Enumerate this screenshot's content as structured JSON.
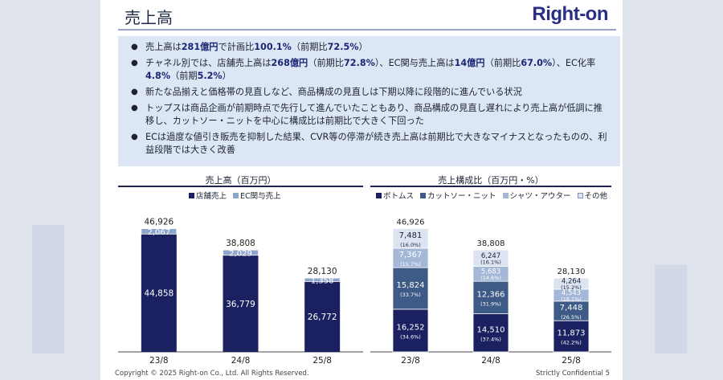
{
  "slide": {
    "title": "売上高",
    "logo": "Right-on",
    "bullets": [
      [
        {
          "t": "売上高は"
        },
        {
          "t": "281億円",
          "b": true
        },
        {
          "t": "で計画比"
        },
        {
          "t": "100.1%",
          "b": true
        },
        {
          "t": "（前期比"
        },
        {
          "t": "72.5%",
          "b": true
        },
        {
          "t": "）"
        }
      ],
      [
        {
          "t": "チャネル別では、店舗売上高は"
        },
        {
          "t": "268億円",
          "b": true
        },
        {
          "t": "（前期比"
        },
        {
          "t": "72.8%",
          "b": true
        },
        {
          "t": "）、EC関与売上高は"
        },
        {
          "t": "14億円",
          "b": true
        },
        {
          "t": "（前期比"
        },
        {
          "t": "67.0%",
          "b": true
        },
        {
          "t": "）、EC化率"
        },
        {
          "t": "4.8%",
          "b": true
        },
        {
          "t": "（前期"
        },
        {
          "t": "5.2%",
          "b": true
        },
        {
          "t": "）"
        }
      ],
      [
        {
          "t": "新たな品揃えと価格帯の見直しなど、商品構成の見直しは下期以降に段階的に進んでいる状況"
        }
      ],
      [
        {
          "t": "トップスは商品企画が前期時点で先行して進んでいたこともあり、商品構成の見直し遅れにより売上高が低調に推移し、カットソー・ニットを中心に構成比は前期比で大きく下回った"
        }
      ],
      [
        {
          "t": "ECは過度な値引き販売を抑制した結果、CVR等の停滞が続き売上高は前期比で大きなマイナスとなったものの、利益段階では大きく改善"
        }
      ]
    ],
    "footer_left": "Copyright © 2025 Right-on Co., Ltd.  All Rights Reserved.",
    "footer_right": "Strictly Confidential    5"
  },
  "colors": {
    "navy": "#1b2160",
    "steel": "#8fa6cc",
    "mid": "#3e5a86",
    "light": "#a3b7d6",
    "pale": "#dce4f1"
  },
  "chart_data": [
    {
      "type": "bar",
      "title": "売上高（百万円）",
      "categories": [
        "23/8",
        "24/8",
        "25/8"
      ],
      "series": [
        {
          "name": "店舗売上",
          "values": [
            44858,
            36779,
            26772
          ]
        },
        {
          "name": "EC関与売上",
          "values": [
            2067,
            2029,
            1358
          ]
        }
      ],
      "totals": [
        46926,
        38808,
        28130
      ],
      "labels": {
        "店舗売上": [
          "44,858",
          "36,779",
          "26,772"
        ],
        "EC関与売上": [
          "2,067",
          "2,029",
          "1,358"
        ],
        "totals": [
          "46,926",
          "38,808",
          "28,130"
        ]
      },
      "ylim": [
        0,
        52000
      ]
    },
    {
      "type": "bar",
      "title": "売上構成比（百万円・%）",
      "categories": [
        "23/8",
        "24/8",
        "25/8"
      ],
      "series": [
        {
          "name": "ボトムス",
          "values": [
            16252,
            14510,
            11873
          ],
          "labels": [
            "16,252",
            "14,510",
            "11,873"
          ],
          "pct": [
            "(34.6%)",
            "(37.4%)",
            "(42.2%)"
          ]
        },
        {
          "name": "カットソー・ニット",
          "values": [
            15824,
            12366,
            7448
          ],
          "labels": [
            "15,824",
            "12,366",
            "7,448"
          ],
          "pct": [
            "(33.7%)",
            "(31.9%)",
            "(26.5%)"
          ]
        },
        {
          "name": "シャツ・アウター",
          "values": [
            7367,
            5683,
            4543
          ],
          "labels": [
            "7,367",
            "5,683",
            "4,543"
          ],
          "pct": [
            "(15.7%)",
            "(14.6%)",
            "(16.1%)"
          ]
        },
        {
          "name": "その他",
          "values": [
            7481,
            6247,
            4264
          ],
          "labels": [
            "7,481",
            "6,247",
            "4,264"
          ],
          "pct": [
            "(16.0%)",
            "(16.1%)",
            "(15.2%)"
          ]
        }
      ],
      "totals": [
        "46,926",
        "38,808",
        "28,130"
      ],
      "ylim": [
        0,
        52000
      ]
    }
  ]
}
